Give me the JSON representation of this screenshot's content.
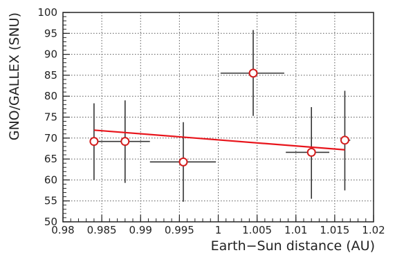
{
  "chart_data": {
    "type": "scatter",
    "xlabel": "Earth−Sun distance (AU)",
    "ylabel": "GNO/GALLEX (SNU)",
    "xlim": [
      0.98,
      1.02
    ],
    "ylim": [
      50,
      100
    ],
    "grid": true,
    "x_ticks": [
      0.98,
      0.985,
      0.99,
      0.995,
      1,
      1.005,
      1.01,
      1.015,
      1.02
    ],
    "x_tick_labels": [
      "0.98",
      "0.985",
      "0.99",
      "0.995",
      "1",
      "1.005",
      "1.01",
      "1.015",
      "1.02"
    ],
    "y_ticks": [
      50,
      55,
      60,
      65,
      70,
      75,
      80,
      85,
      90,
      95,
      100
    ],
    "y_tick_labels": [
      "50",
      "55",
      "60",
      "65",
      "70",
      "75",
      "80",
      "85",
      "90",
      "95",
      "100"
    ],
    "points": [
      {
        "x": 0.984,
        "y": 69.2,
        "xerr_lo": 0.0,
        "xerr_hi": 0.0,
        "y_lo": 60.0,
        "y_hi": 78.3
      },
      {
        "x": 0.988,
        "y": 69.2,
        "xerr_lo": 0.0044,
        "xerr_hi": 0.0032,
        "y_lo": 59.3,
        "y_hi": 79.0
      },
      {
        "x": 0.9955,
        "y": 64.3,
        "xerr_lo": 0.0043,
        "xerr_hi": 0.0042,
        "y_lo": 54.8,
        "y_hi": 73.8
      },
      {
        "x": 1.0045,
        "y": 85.5,
        "xerr_lo": 0.0042,
        "xerr_hi": 0.004,
        "y_lo": 75.3,
        "y_hi": 95.8
      },
      {
        "x": 1.012,
        "y": 66.6,
        "xerr_lo": 0.0033,
        "xerr_hi": 0.0023,
        "y_lo": 55.5,
        "y_hi": 77.4
      },
      {
        "x": 1.0163,
        "y": 69.5,
        "xerr_lo": 0.0,
        "xerr_hi": 0.0007,
        "y_lo": 57.5,
        "y_hi": 81.3
      }
    ],
    "fit_line": {
      "x": [
        0.984,
        1.0163
      ],
      "y": [
        71.9,
        67.2
      ],
      "color": "#e8141b"
    },
    "marker_color": "#d41d1d",
    "errorbar_color": "#333333"
  }
}
